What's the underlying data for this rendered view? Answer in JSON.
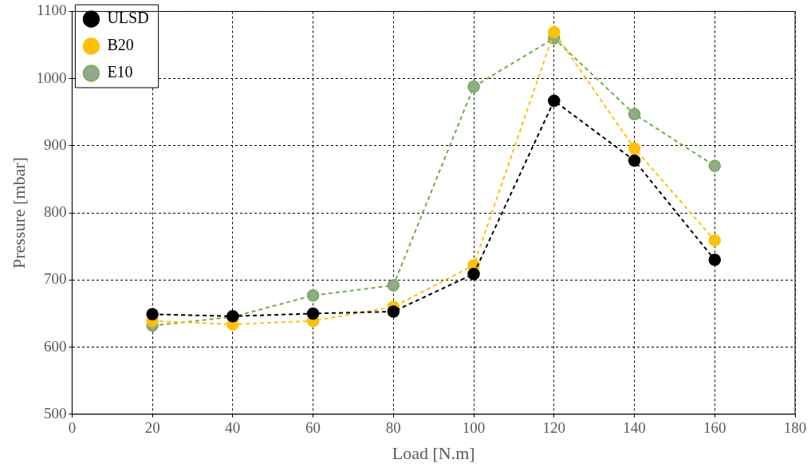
{
  "chart_data": {
    "type": "line",
    "xlabel": "Load [N.m]",
    "ylabel": "Pressure [mbar]",
    "x": [
      20,
      40,
      60,
      80,
      100,
      120,
      140,
      160
    ],
    "xlim": [
      0,
      180
    ],
    "xticks": [
      0,
      20,
      40,
      60,
      80,
      100,
      120,
      140,
      160,
      180
    ],
    "ylim": [
      500,
      1100
    ],
    "yticks": [
      500,
      600,
      700,
      800,
      900,
      1000,
      1100
    ],
    "grid": true,
    "legend": "top left",
    "marker": "circle",
    "line_style": "dashed",
    "series": [
      {
        "name": "ULSD",
        "color": "#000000",
        "values": [
          649,
          646,
          650,
          653,
          709,
          967,
          878,
          730
        ]
      },
      {
        "name": "B20",
        "color": "#ffc000",
        "values": [
          639,
          634,
          639,
          660,
          722,
          1069,
          896,
          759
        ]
      },
      {
        "name": "E10",
        "color": "#70ad47",
        "values": [
          632,
          645,
          677,
          692,
          988,
          1060,
          947,
          870
        ]
      }
    ]
  }
}
